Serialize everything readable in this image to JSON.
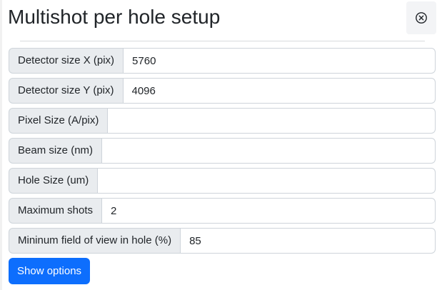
{
  "dialog": {
    "title": "Multishot per hole setup",
    "close_icon": "circle-x-icon"
  },
  "fields": [
    {
      "label": "Detector size X (pix)",
      "value": "5760",
      "placeholder": ""
    },
    {
      "label": "Detector size Y (pix)",
      "value": "4096",
      "placeholder": ""
    },
    {
      "label": "Pixel Size (A/pix)",
      "value": "",
      "placeholder": ""
    },
    {
      "label": "Beam size (nm)",
      "value": "",
      "placeholder": ""
    },
    {
      "label": "Hole Size (um)",
      "value": "",
      "placeholder": ""
    },
    {
      "label": "Maximum shots",
      "value": "2",
      "placeholder": ""
    },
    {
      "label": "Mininum field of view in hole (%)",
      "value": "85",
      "placeholder": ""
    }
  ],
  "actions": {
    "show_options_label": "Show options"
  },
  "colors": {
    "primary": "#0d6efd",
    "addon_background": "#e9ecef",
    "border": "#ced4da",
    "text": "#212529"
  }
}
